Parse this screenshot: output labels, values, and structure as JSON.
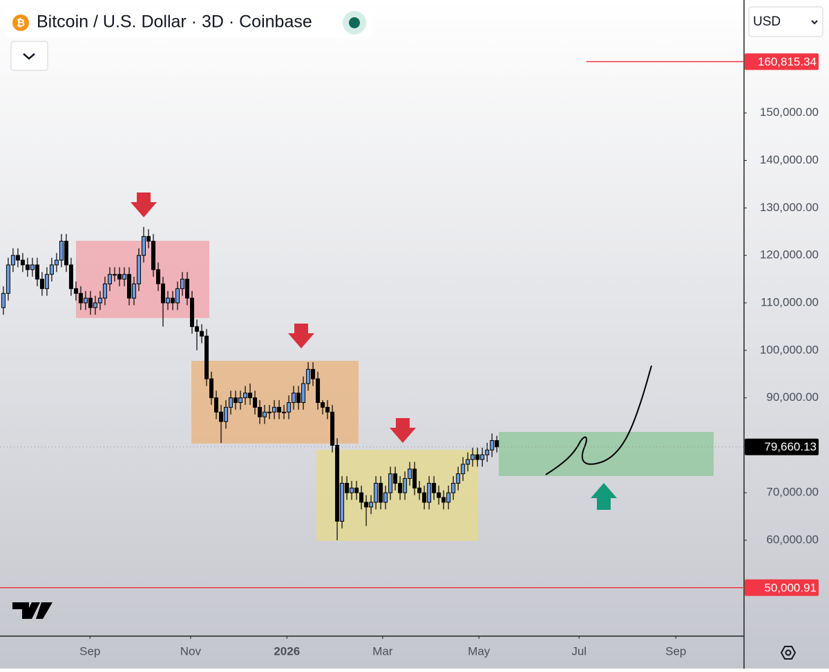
{
  "chart_data": {
    "type": "candlestick",
    "title": "Bitcoin / U.S. Dollar · 3D · Coinbase",
    "currency": "USD",
    "up_color": "#6b9be0",
    "down_color": "#000000",
    "xlim": [
      -0.7,
      153.1
    ],
    "xticks": [
      {
        "value": 17.9,
        "label": "Sep"
      },
      {
        "value": 38.7,
        "label": "Nov"
      },
      {
        "value": 58.6,
        "label": "2026"
      },
      {
        "value": 78.4,
        "label": "Mar"
      },
      {
        "value": 98.3,
        "label": "May"
      },
      {
        "value": 119,
        "label": "Jul"
      },
      {
        "value": 139,
        "label": "Sep"
      }
    ],
    "ylim": [
      39800,
      173800
    ],
    "yticks": [
      {
        "value": 60000,
        "label": "60,000.00"
      },
      {
        "value": 70000,
        "label": "70,000.00"
      },
      {
        "value": 80000,
        "label": "80,000.00"
      },
      {
        "value": 90000,
        "label": "90,000.00"
      },
      {
        "value": 100000,
        "label": "100,000.00"
      },
      {
        "value": 110000,
        "label": "110,000.00"
      },
      {
        "value": 120000,
        "label": "120,000.00"
      },
      {
        "value": 130000,
        "label": "130,000.00"
      },
      {
        "value": 140000,
        "label": "140,000.00"
      },
      {
        "value": 150000,
        "label": "150,000.00"
      }
    ],
    "price_lines": [
      {
        "value": 160815.34,
        "label": "160,815.34",
        "color": "#f23645",
        "start": 120.5
      },
      {
        "value": 50000.91,
        "label": "50,000.91",
        "color": "#f23645",
        "start": -0.7
      }
    ],
    "last_price": {
      "value": 79660.13,
      "label": "79,660.13"
    },
    "open": [
      109000,
      112000,
      118000,
      120000,
      119000,
      118000,
      117000,
      118000,
      115000,
      113000,
      116000,
      118000,
      119000,
      123000,
      118000,
      113000,
      112000,
      110000,
      111000,
      109000,
      110000,
      111000,
      114000,
      116000,
      116000,
      115000,
      116000,
      111000,
      114000,
      120000,
      124000,
      123000,
      117000,
      114000,
      110000,
      111000,
      110000,
      113000,
      115000,
      111000,
      105000,
      104000,
      103000,
      94000,
      90000,
      87000,
      85000,
      88000,
      90000,
      89000,
      90000,
      91000,
      90000,
      88000,
      86000,
      87000,
      87000,
      88000,
      87000,
      87000,
      89000,
      91000,
      89000,
      93000,
      96000,
      94000,
      89000,
      88000,
      87000,
      80000,
      64000,
      72000,
      70000,
      71000,
      70000,
      68000,
      67000,
      68000,
      72000,
      68000,
      70000,
      74000,
      72000,
      70000,
      73000,
      75000,
      71000,
      70000,
      68000,
      72000,
      70000,
      69000,
      68000,
      70000,
      72000,
      74000,
      76000,
      77000,
      78000,
      77000,
      78000,
      79000,
      81000
    ],
    "high": [
      113500,
      119500,
      121500,
      121500,
      120500,
      119500,
      119500,
      119500,
      116500,
      117500,
      119500,
      120500,
      124500,
      124500,
      119500,
      114500,
      113500,
      112500,
      112500,
      111500,
      112500,
      115500,
      117500,
      117500,
      117500,
      117500,
      117500,
      115500,
      121500,
      126000,
      125500,
      124500,
      118500,
      115500,
      112500,
      112500,
      114500,
      116500,
      116500,
      112500,
      106500,
      105500,
      104500,
      95500,
      91500,
      88500,
      89500,
      91500,
      91500,
      91500,
      92500,
      93000,
      91500,
      89500,
      88500,
      88500,
      89500,
      89500,
      88500,
      90500,
      92500,
      92500,
      94500,
      97500,
      97500,
      95500,
      89500,
      89500,
      88500,
      81500,
      73500,
      73500,
      72500,
      72500,
      71500,
      69500,
      69500,
      73500,
      73500,
      71500,
      75500,
      75500,
      73500,
      74500,
      76500,
      76500,
      72500,
      71500,
      73500,
      73500,
      71500,
      70500,
      71500,
      73500,
      75500,
      77500,
      78500,
      79500,
      79500,
      79500,
      80500,
      82500,
      82000
    ],
    "low": [
      107500,
      110500,
      116500,
      117500,
      116500,
      115500,
      115500,
      113500,
      111500,
      111500,
      114500,
      116500,
      117500,
      116500,
      111500,
      110500,
      108500,
      108500,
      107500,
      107500,
      108500,
      109500,
      112500,
      114500,
      113500,
      113500,
      109500,
      109500,
      112500,
      118500,
      121500,
      115500,
      112500,
      105000,
      108500,
      108500,
      108500,
      111500,
      109500,
      103500,
      100000,
      101500,
      92500,
      88500,
      85500,
      80500,
      83500,
      86500,
      87500,
      87500,
      88500,
      88500,
      86500,
      84500,
      84500,
      85500,
      85500,
      85500,
      85500,
      85500,
      87500,
      87500,
      87500,
      91500,
      92500,
      87500,
      86500,
      85500,
      78500,
      60000,
      62500,
      68500,
      68500,
      68500,
      66500,
      63000,
      65500,
      66500,
      66500,
      66500,
      68500,
      70500,
      68500,
      68500,
      71500,
      69500,
      68500,
      66500,
      66500,
      68500,
      67500,
      66500,
      66500,
      68500,
      70500,
      72500,
      74500,
      75500,
      75500,
      75500,
      76500,
      77500,
      78500
    ],
    "close": [
      112000,
      118000,
      120000,
      119000,
      118000,
      117000,
      118000,
      115000,
      113000,
      116000,
      118000,
      119000,
      123000,
      118000,
      113000,
      112000,
      110000,
      111000,
      109000,
      110000,
      111000,
      114000,
      116000,
      116000,
      115000,
      116000,
      111000,
      114000,
      120000,
      124000,
      123000,
      117000,
      114000,
      110000,
      111000,
      110000,
      113000,
      115000,
      111000,
      105000,
      104000,
      103000,
      94000,
      90000,
      87000,
      85000,
      88000,
      90000,
      89000,
      90000,
      91000,
      90000,
      88000,
      86000,
      87000,
      87000,
      88000,
      87000,
      87000,
      89000,
      91000,
      89000,
      93000,
      96000,
      94000,
      89000,
      88000,
      87000,
      80000,
      64000,
      72000,
      70000,
      71000,
      70000,
      68000,
      67000,
      68000,
      72000,
      68000,
      70000,
      74000,
      72000,
      70000,
      73000,
      75000,
      71000,
      70000,
      68000,
      72000,
      70000,
      69000,
      68000,
      70000,
      72000,
      74000,
      76000,
      77000,
      78000,
      77000,
      78000,
      79000,
      81000,
      79660.13
    ]
  }
}
